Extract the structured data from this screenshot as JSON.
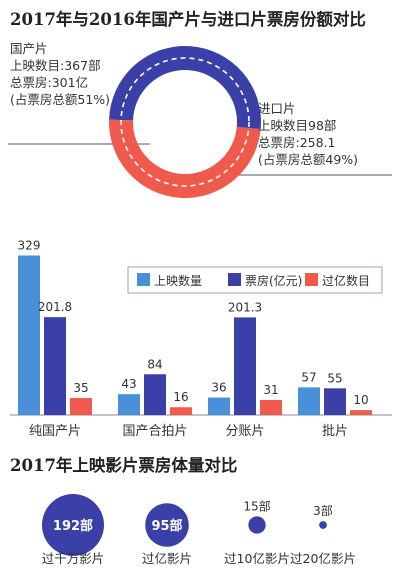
{
  "titles": {
    "donut": "2017年与2016年国产片与进口片票房份额对比",
    "bubbles": "2017年上映影片票房体量对比"
  },
  "donut": {
    "domestic": {
      "label": "国产片",
      "count": "上映数目:367部",
      "box": "总票房:301亿",
      "share": "(占票房总额51%)",
      "value": 51,
      "color": "#3b3fa8"
    },
    "imported": {
      "label": "进口片",
      "count": "上映数目98部",
      "box": "总票房:258.1",
      "share": "(占票房总额49%)",
      "value": 49,
      "color": "#ef5a4c"
    }
  },
  "chart_data": [
    {
      "type": "pie",
      "title": "2017年与2016年国产片与进口片票房份额对比",
      "categories": [
        "国产片",
        "进口片"
      ],
      "values": [
        51,
        49
      ]
    },
    {
      "type": "bar",
      "title": "",
      "categories": [
        "纯国产片",
        "国产合拍片",
        "分账片",
        "批片"
      ],
      "series": [
        {
          "name": "上映数量",
          "values": [
            329,
            43,
            36,
            57
          ],
          "color": "#4a90d9"
        },
        {
          "name": "票房(亿元)",
          "values": [
            201.8,
            84,
            201.3,
            55
          ],
          "color": "#3b3fa8"
        },
        {
          "name": "过亿数目",
          "values": [
            35,
            16,
            31,
            10
          ],
          "color": "#ef5a4c"
        }
      ],
      "ylim": [
        0,
        330
      ],
      "legend": "top-right",
      "grid": false
    },
    {
      "type": "scatter",
      "title": "2017年上映影片票房体量对比",
      "categories": [
        "过千万影片",
        "过亿影片",
        "过10亿影片",
        "过20亿影片"
      ],
      "values": [
        192,
        95,
        15,
        3
      ],
      "value_labels": [
        "192部",
        "95部",
        "15部",
        "3部"
      ]
    }
  ]
}
